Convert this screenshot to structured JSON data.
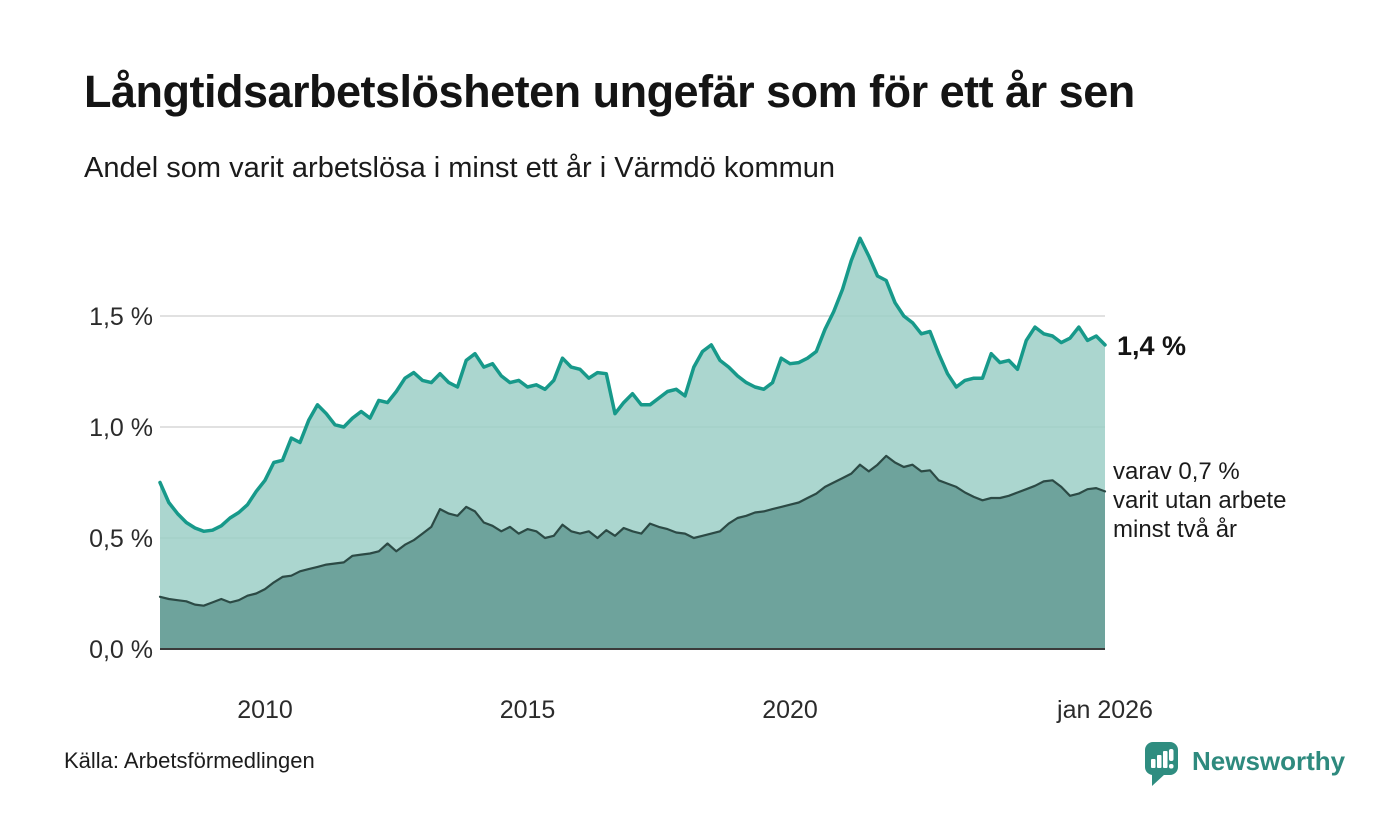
{
  "header": {
    "title": "Långtidsarbetslösheten ungefär som för ett år sen",
    "subtitle": "Andel som varit arbetslösa i minst ett år i Värmdö kommun"
  },
  "chart_data": {
    "type": "area",
    "title": "Långtidsarbetslösheten ungefär som för ett år sen",
    "subtitle": "Andel som varit arbetslösa i minst ett år i Värmdö kommun",
    "unit": "%",
    "grid": true,
    "legend_position": "annotations-right",
    "xlim": [
      2008,
      2026
    ],
    "ylim": [
      0,
      2.0
    ],
    "x_start": 2008,
    "x_step_months": 2,
    "x_ticks": [
      {
        "value": 2010,
        "label": "2010"
      },
      {
        "value": 2015,
        "label": "2015"
      },
      {
        "value": 2020,
        "label": "2020"
      },
      {
        "value": 2026,
        "label": "jan 2026"
      }
    ],
    "y_ticks": [
      {
        "value": 0,
        "label": "0,0 %"
      },
      {
        "value": 0.5,
        "label": "0,5 %"
      },
      {
        "value": 1.0,
        "label": "1,0 %"
      },
      {
        "value": 1.5,
        "label": "1,5 %"
      }
    ],
    "style": {
      "grid_color": "#d7d7d7",
      "axis_line_color": "#3b3b3b",
      "tick_label_color": "#2b2b2b"
    },
    "series": [
      {
        "name": "Andel arbetslösa minst ett år",
        "color": "#17998a",
        "fill": "#9ccfc7",
        "fill_opacity": 0.85,
        "stroke_width": 3.5,
        "end_value_label": "1,4 %",
        "values": [
          0.75,
          0.66,
          0.61,
          0.57,
          0.545,
          0.53,
          0.535,
          0.555,
          0.59,
          0.615,
          0.65,
          0.71,
          0.76,
          0.84,
          0.85,
          0.95,
          0.93,
          1.03,
          1.1,
          1.06,
          1.01,
          1.0,
          1.04,
          1.07,
          1.04,
          1.12,
          1.11,
          1.16,
          1.22,
          1.245,
          1.21,
          1.2,
          1.24,
          1.2,
          1.18,
          1.3,
          1.33,
          1.27,
          1.285,
          1.23,
          1.2,
          1.21,
          1.18,
          1.19,
          1.17,
          1.21,
          1.31,
          1.27,
          1.26,
          1.22,
          1.245,
          1.24,
          1.06,
          1.11,
          1.15,
          1.1,
          1.1,
          1.13,
          1.16,
          1.17,
          1.14,
          1.27,
          1.34,
          1.37,
          1.3,
          1.27,
          1.23,
          1.2,
          1.18,
          1.17,
          1.2,
          1.31,
          1.285,
          1.29,
          1.31,
          1.34,
          1.44,
          1.52,
          1.62,
          1.75,
          1.85,
          1.77,
          1.68,
          1.66,
          1.56,
          1.5,
          1.47,
          1.42,
          1.43,
          1.33,
          1.24,
          1.18,
          1.21,
          1.22,
          1.22,
          1.33,
          1.29,
          1.3,
          1.26,
          1.39,
          1.45,
          1.42,
          1.41,
          1.38,
          1.4,
          1.45,
          1.39,
          1.41,
          1.37
        ]
      },
      {
        "name": "varav utan arbete minst två år",
        "color": "#2c4a45",
        "fill": "#6aa099",
        "fill_opacity": 0.95,
        "stroke_width": 2.2,
        "end_value_label": "0,7 %",
        "values": [
          0.235,
          0.225,
          0.22,
          0.215,
          0.2,
          0.195,
          0.21,
          0.225,
          0.21,
          0.22,
          0.24,
          0.25,
          0.27,
          0.3,
          0.325,
          0.33,
          0.35,
          0.36,
          0.37,
          0.38,
          0.385,
          0.39,
          0.42,
          0.425,
          0.43,
          0.44,
          0.475,
          0.44,
          0.47,
          0.49,
          0.52,
          0.55,
          0.63,
          0.61,
          0.6,
          0.64,
          0.62,
          0.57,
          0.555,
          0.53,
          0.55,
          0.52,
          0.54,
          0.53,
          0.5,
          0.51,
          0.56,
          0.53,
          0.52,
          0.53,
          0.5,
          0.535,
          0.51,
          0.545,
          0.53,
          0.52,
          0.565,
          0.55,
          0.54,
          0.525,
          0.52,
          0.5,
          0.51,
          0.52,
          0.53,
          0.565,
          0.59,
          0.6,
          0.615,
          0.62,
          0.63,
          0.64,
          0.65,
          0.66,
          0.68,
          0.7,
          0.73,
          0.75,
          0.77,
          0.79,
          0.83,
          0.8,
          0.83,
          0.87,
          0.84,
          0.82,
          0.83,
          0.8,
          0.805,
          0.76,
          0.745,
          0.73,
          0.705,
          0.685,
          0.67,
          0.68,
          0.68,
          0.69,
          0.705,
          0.72,
          0.735,
          0.755,
          0.76,
          0.73,
          0.69,
          0.7,
          0.72,
          0.725,
          0.71
        ]
      }
    ],
    "annotations": {
      "end_value_label": "1,4 %",
      "secondary_lines": [
        "varav 0,7 %",
        "varit utan arbete",
        "minst två år"
      ]
    }
  },
  "footer": {
    "source": "Källa: Arbetsförmedlingen",
    "brand": "Newsworthy",
    "brand_color": "#2e8a7e"
  }
}
